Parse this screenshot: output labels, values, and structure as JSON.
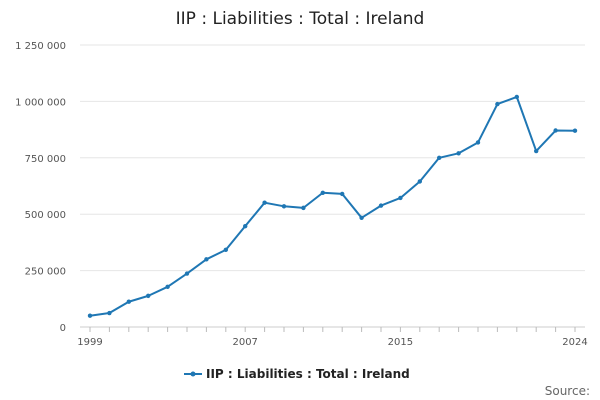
{
  "chart_data": {
    "type": "line",
    "title": "IIP : Liabilities : Total : Ireland",
    "xlabel": "",
    "ylabel": "",
    "x": [
      1999,
      2000,
      2001,
      2002,
      2003,
      2004,
      2005,
      2006,
      2007,
      2008,
      2009,
      2010,
      2011,
      2012,
      2013,
      2014,
      2015,
      2016,
      2017,
      2018,
      2019,
      2020,
      2021,
      2022,
      2023,
      2024
    ],
    "xlim": [
      1999,
      2024
    ],
    "ylim": [
      0,
      1250000
    ],
    "y_ticks": [
      0,
      250000,
      500000,
      750000,
      1000000,
      1250000
    ],
    "y_tick_labels": [
      "0",
      "250 000",
      "500 000",
      "750 000",
      "1 000 000",
      "1 250 000"
    ],
    "x_ticks": [
      1999,
      2007,
      2015,
      2024
    ],
    "x_tick_labels": [
      "1999",
      "2007",
      "2015",
      "2024"
    ],
    "grid": true,
    "legend_position": "bottom",
    "series": [
      {
        "name": "IIP : Liabilities : Total : Ireland",
        "color": "#1f77b4",
        "values": [
          50000,
          62000,
          112000,
          138000,
          178000,
          237000,
          300000,
          342000,
          447000,
          551000,
          535000,
          528000,
          595000,
          590000,
          484000,
          538000,
          572000,
          645000,
          750000,
          770000,
          818000,
          988000,
          1020000,
          780000,
          871000,
          870000
        ]
      }
    ]
  },
  "source_label": "Source:"
}
